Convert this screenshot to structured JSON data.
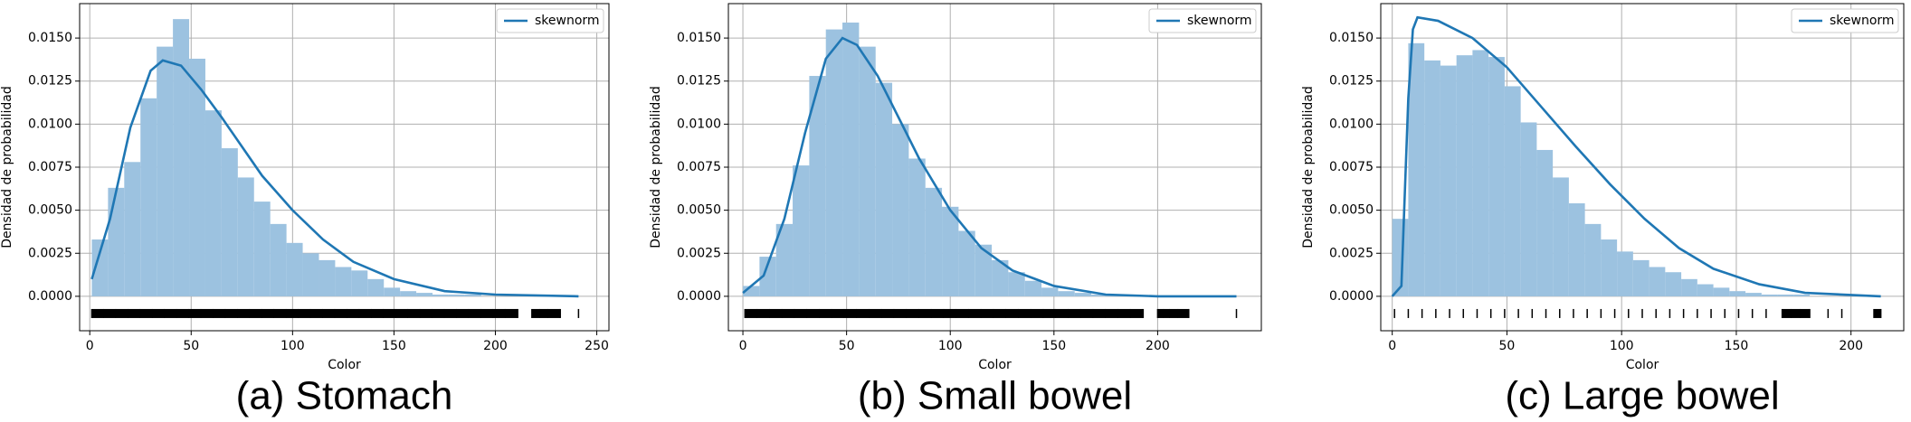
{
  "chart_data": [
    {
      "type": "histogram",
      "caption": "(a) Stomach",
      "xlabel": "Color",
      "ylabel": "Densidad de probabilidad",
      "hist_color": "#9cc2e0",
      "bins": [
        1,
        9,
        17,
        25,
        33,
        41,
        49,
        57,
        65,
        73,
        81,
        89,
        97,
        105,
        113,
        121,
        129,
        137,
        145,
        153,
        161,
        169,
        177,
        185,
        193,
        201,
        209,
        217,
        225,
        233,
        241
      ],
      "values": [
        0.0033,
        0.0063,
        0.0078,
        0.0115,
        0.0145,
        0.0161,
        0.0138,
        0.0108,
        0.0086,
        0.0069,
        0.0055,
        0.0042,
        0.0031,
        0.0025,
        0.0021,
        0.0017,
        0.0015,
        0.001,
        0.0005,
        0.0003,
        0.0002,
        0.0001,
        0.0001,
        0.0001,
        0,
        0,
        0,
        0,
        0,
        0
      ],
      "series": [
        {
          "name": "skewnorm",
          "color": "#1f77b4",
          "x": [
            1,
            10,
            20,
            30,
            36,
            45,
            55,
            65,
            75,
            85,
            100,
            115,
            130,
            150,
            175,
            200,
            241
          ],
          "values": [
            0.001,
            0.0045,
            0.0098,
            0.0131,
            0.0137,
            0.0134,
            0.012,
            0.0104,
            0.0087,
            0.007,
            0.005,
            0.0033,
            0.002,
            0.001,
            0.0003,
            0.0001,
            0
          ]
        }
      ],
      "rug": [
        1,
        7,
        13,
        19,
        25,
        31,
        37,
        43,
        49,
        55,
        61,
        67,
        73,
        79,
        85,
        91,
        97,
        103,
        109,
        115,
        121,
        127,
        133,
        139,
        145,
        151,
        157,
        163,
        169,
        175,
        181,
        187,
        193,
        199,
        205,
        211,
        218,
        222,
        226,
        232,
        241
      ],
      "rug_y": -0.001,
      "xlim": [
        -5,
        256
      ],
      "xticks": [
        0,
        50,
        100,
        150,
        200,
        250
      ],
      "ylim": [
        -0.002,
        0.017
      ],
      "yticks": [
        {
          "value": 0,
          "label": "0.0000"
        },
        0.0025,
        {
          "value": 0.005,
          "label": "0.0050"
        },
        0.0075,
        {
          "value": 0.01,
          "label": "0.0100"
        },
        0.0125,
        {
          "value": 0.015,
          "label": "0.0150"
        }
      ],
      "grid": true,
      "legend": "upper right"
    },
    {
      "type": "histogram",
      "caption": "(b) Small bowel",
      "xlabel": "Color",
      "ylabel": "Densidad de probabilidad",
      "hist_color": "#9cc2e0",
      "bins": [
        0,
        8,
        16,
        24,
        32,
        40,
        48,
        56,
        64,
        72,
        80,
        88,
        96,
        104,
        112,
        120,
        128,
        136,
        144,
        152,
        160,
        168,
        176,
        184,
        192,
        200,
        208,
        216,
        224,
        232,
        240
      ],
      "values": [
        0.0006,
        0.0023,
        0.0042,
        0.0076,
        0.0128,
        0.0155,
        0.0159,
        0.0145,
        0.0124,
        0.01,
        0.008,
        0.0063,
        0.0052,
        0.0038,
        0.003,
        0.0021,
        0.0014,
        0.0009,
        0.0005,
        0.0003,
        0.0002,
        0.0001,
        0.0001,
        0.0001,
        0,
        0,
        0,
        0,
        0,
        0
      ],
      "series": [
        {
          "name": "skewnorm",
          "color": "#1f77b4",
          "x": [
            0,
            10,
            20,
            30,
            40,
            48,
            55,
            65,
            75,
            85,
            100,
            115,
            130,
            150,
            175,
            200,
            238
          ],
          "values": [
            0.0002,
            0.0012,
            0.0045,
            0.0095,
            0.0138,
            0.015,
            0.0146,
            0.0128,
            0.0104,
            0.008,
            0.005,
            0.0028,
            0.0015,
            0.0006,
            0.0001,
            0,
            0
          ]
        }
      ],
      "rug": [
        1,
        7,
        13,
        19,
        25,
        31,
        37,
        43,
        49,
        55,
        61,
        67,
        73,
        79,
        85,
        91,
        97,
        103,
        109,
        115,
        121,
        127,
        133,
        139,
        145,
        151,
        157,
        163,
        169,
        175,
        181,
        187,
        193,
        200,
        203,
        206,
        210,
        215,
        238
      ],
      "rug_y": -0.001,
      "xlim": [
        -7,
        250
      ],
      "xticks": [
        0,
        50,
        100,
        150,
        200
      ],
      "ylim": [
        -0.002,
        0.017
      ],
      "yticks": [
        {
          "value": 0,
          "label": "0.0000"
        },
        0.0025,
        {
          "value": 0.005,
          "label": "0.0050"
        },
        0.0075,
        {
          "value": 0.01,
          "label": "0.0100"
        },
        0.0125,
        {
          "value": 0.015,
          "label": "0.0150"
        }
      ],
      "grid": true,
      "legend": "upper right"
    },
    {
      "type": "histogram",
      "caption": "(c) Large bowel",
      "xlabel": "Color",
      "ylabel": "Densidad de probabilidad",
      "hist_color": "#9cc2e0",
      "bins": [
        0,
        7,
        14,
        21,
        28,
        35,
        42,
        49,
        56,
        63,
        70,
        77,
        84,
        91,
        98,
        105,
        112,
        119,
        126,
        133,
        140,
        147,
        154,
        161,
        168,
        175,
        182,
        189,
        196,
        203,
        210
      ],
      "values": [
        0.0045,
        0.0147,
        0.0137,
        0.0134,
        0.014,
        0.0143,
        0.0139,
        0.0122,
        0.0101,
        0.0085,
        0.0069,
        0.0054,
        0.0042,
        0.0033,
        0.0026,
        0.0021,
        0.0017,
        0.0014,
        0.001,
        0.0007,
        0.0005,
        0.0003,
        0.0002,
        0.0001,
        0.0001,
        0.0001,
        0,
        0,
        0,
        0
      ],
      "series": [
        {
          "name": "skewnorm",
          "color": "#1f77b4",
          "x": [
            0,
            4,
            7,
            9,
            11,
            20,
            35,
            50,
            65,
            80,
            95,
            110,
            125,
            140,
            160,
            180,
            213
          ],
          "values": [
            0,
            0.0006,
            0.0115,
            0.0155,
            0.0162,
            0.016,
            0.015,
            0.0133,
            0.011,
            0.0087,
            0.0065,
            0.0045,
            0.0028,
            0.0016,
            0.0007,
            0.0002,
            0
          ]
        }
      ],
      "rug": [
        1,
        7,
        13,
        19,
        25,
        31,
        37,
        43,
        49,
        55,
        61,
        67,
        73,
        79,
        85,
        91,
        97,
        103,
        109,
        115,
        121,
        127,
        133,
        139,
        145,
        151,
        157,
        163,
        170,
        174,
        178,
        182,
        190,
        196,
        210,
        213
      ],
      "rug_y": -0.001,
      "xlim": [
        -5,
        223
      ],
      "xticks": [
        0,
        50,
        100,
        150,
        200
      ],
      "ylim": [
        -0.002,
        0.017
      ],
      "yticks": [
        {
          "value": 0,
          "label": "0.0000"
        },
        0.0025,
        {
          "value": 0.005,
          "label": "0.0050"
        },
        0.0075,
        {
          "value": 0.01,
          "label": "0.0100"
        },
        0.0125,
        {
          "value": 0.015,
          "label": "0.0150"
        }
      ],
      "grid": true,
      "legend": "upper right"
    }
  ]
}
